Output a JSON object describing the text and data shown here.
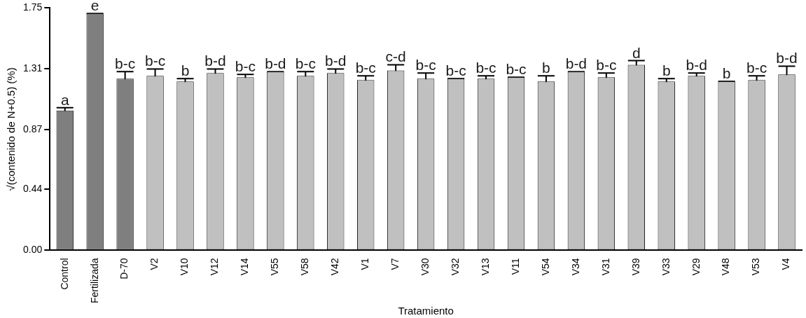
{
  "chart_data": {
    "type": "bar",
    "xlabel": "Tratamiento",
    "ylabel": "√(contenido de N+0.5) (%)",
    "categories": [
      "Control",
      "Fertilizada",
      "D-70",
      "V2",
      "V10",
      "V12",
      "V14",
      "V55",
      "V58",
      "V42",
      "V1",
      "V7",
      "V30",
      "V32",
      "V13",
      "V11",
      "V54",
      "V34",
      "V31",
      "V39",
      "V33",
      "V29",
      "V48",
      "V53",
      "V4"
    ],
    "values": [
      1.01,
      1.71,
      1.24,
      1.26,
      1.22,
      1.28,
      1.25,
      1.29,
      1.26,
      1.28,
      1.23,
      1.3,
      1.24,
      1.24,
      1.24,
      1.25,
      1.22,
      1.29,
      1.25,
      1.34,
      1.22,
      1.26,
      1.22,
      1.23,
      1.27
    ],
    "errors": [
      0.02,
      0,
      0.05,
      0.05,
      0.02,
      0.03,
      0.02,
      0,
      0.03,
      0.03,
      0.03,
      0.04,
      0.04,
      0,
      0.02,
      0,
      0.04,
      0,
      0.03,
      0.03,
      0.02,
      0.02,
      0,
      0.03,
      0.06
    ],
    "colors": [
      "#7f7f7f",
      "#7f7f7f",
      "#7f7f7f",
      "#c0c0c0",
      "#c0c0c0",
      "#c0c0c0",
      "#c0c0c0",
      "#c0c0c0",
      "#c0c0c0",
      "#c0c0c0",
      "#c0c0c0",
      "#c0c0c0",
      "#c0c0c0",
      "#c0c0c0",
      "#c0c0c0",
      "#c0c0c0",
      "#c0c0c0",
      "#c0c0c0",
      "#c0c0c0",
      "#c0c0c0",
      "#c0c0c0",
      "#c0c0c0",
      "#c0c0c0",
      "#c0c0c0",
      "#c0c0c0"
    ],
    "ylim": [
      0,
      1.75
    ],
    "yticks": [
      {
        "value": 0,
        "label": "0.00"
      },
      {
        "value": 0.44,
        "label": "0.44"
      },
      {
        "value": 0.87,
        "label": "0.87"
      },
      {
        "value": 1.31,
        "label": "1.31"
      },
      {
        "value": 1.75,
        "label": "1.75"
      }
    ],
    "grid": false,
    "legend": false,
    "annotations": [
      {
        "text": "a",
        "x": "Control",
        "y": 1.03
      },
      {
        "text": "e",
        "x": "Fertilizada",
        "y": 1.71
      },
      {
        "text": "b-c",
        "x": "D-70",
        "y": 1.29
      },
      {
        "text": "b-c",
        "x": "V2",
        "y": 1.31
      },
      {
        "text": "b",
        "x": "V10",
        "y": 1.24
      },
      {
        "text": "b-d",
        "x": "V12",
        "y": 1.31
      },
      {
        "text": "b-c",
        "x": "V14",
        "y": 1.27
      },
      {
        "text": "b-d",
        "x": "V55",
        "y": 1.29
      },
      {
        "text": "b-c",
        "x": "V58",
        "y": 1.29
      },
      {
        "text": "b-d",
        "x": "V42",
        "y": 1.31
      },
      {
        "text": "b-c",
        "x": "V1",
        "y": 1.26
      },
      {
        "text": "c-d",
        "x": "V7",
        "y": 1.34
      },
      {
        "text": "b-c",
        "x": "V30",
        "y": 1.28
      },
      {
        "text": "b-c",
        "x": "V32",
        "y": 1.24
      },
      {
        "text": "b-c",
        "x": "V13",
        "y": 1.26
      },
      {
        "text": "b-c",
        "x": "V11",
        "y": 1.25
      },
      {
        "text": "b",
        "x": "V54",
        "y": 1.26
      },
      {
        "text": "b-d",
        "x": "V34",
        "y": 1.29
      },
      {
        "text": "b-c",
        "x": "V31",
        "y": 1.28
      },
      {
        "text": "d",
        "x": "V39",
        "y": 1.37
      },
      {
        "text": "b",
        "x": "V33",
        "y": 1.24
      },
      {
        "text": "b-d",
        "x": "V29",
        "y": 1.28
      },
      {
        "text": "b",
        "x": "V48",
        "y": 1.22
      },
      {
        "text": "b-c",
        "x": "V53",
        "y": 1.26
      },
      {
        "text": "b-d",
        "x": "V4",
        "y": 1.33
      }
    ]
  }
}
